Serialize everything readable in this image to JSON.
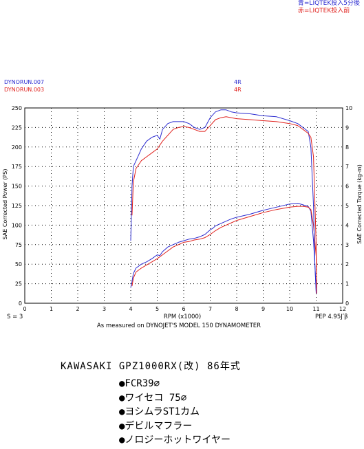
{
  "legend": {
    "blue_label": "青=LIQTEK投入5分後",
    "red_label": "赤=LIQTEK投入前"
  },
  "runs": [
    {
      "file": "DYNORUN.007",
      "gear": "4R",
      "color": "#2a2ad0"
    },
    {
      "file": "DYNORUN.003",
      "gear": "4R",
      "color": "#e0201c"
    }
  ],
  "footer": {
    "smoothing": "S = 3",
    "pep": "PEP 4.95Jʹβ",
    "measured": "As measured on DYNOJET'S MODEL 150 DYNAMOMETER"
  },
  "bike": {
    "model": "KAWASAKI  GPZ1000RX(改)  86年式",
    "mods": [
      "●FCR39∅",
      "●ワイセコ 75∅",
      "●ヨシムラST1カム",
      "●デビルマフラー",
      "●ノロジーホットワイヤー"
    ]
  },
  "chart_data": {
    "type": "line",
    "xlabel": "RPM (x1000)",
    "ylabel": "SAE Corrected Power (PS)",
    "y2label": "SAE Corrected Torque (kg-m)",
    "xlim": [
      0,
      12
    ],
    "ylim": [
      0,
      250
    ],
    "y2lim": [
      0,
      10
    ],
    "xticks": [
      0,
      1,
      2,
      3,
      4,
      5,
      6,
      7,
      8,
      9,
      10,
      11,
      12
    ],
    "yticks": [
      0,
      25,
      50,
      75,
      100,
      125,
      150,
      175,
      200,
      225,
      250
    ],
    "y2ticks": [
      0,
      1,
      2,
      3,
      4,
      5,
      6,
      7,
      8,
      9,
      10
    ],
    "grid": "dotted",
    "series": [
      {
        "run": "DYNORUN.007",
        "quantity": "power",
        "axis": "left",
        "color": "#2a2ad0",
        "x": [
          4.0,
          4.05,
          4.1,
          4.2,
          4.4,
          4.6,
          4.8,
          5.0,
          5.1,
          5.2,
          5.4,
          5.6,
          5.8,
          6.0,
          6.2,
          6.4,
          6.6,
          6.8,
          7.0,
          7.1,
          7.2,
          7.4,
          7.6,
          7.8,
          8.0,
          8.5,
          9.0,
          9.5,
          10.0,
          10.3,
          10.5,
          10.7,
          10.8,
          10.9,
          10.95,
          11.0
        ],
        "y": [
          20,
          28,
          38,
          45,
          50,
          53,
          57,
          62,
          61,
          66,
          72,
          75,
          78,
          80,
          82,
          83,
          85,
          88,
          94,
          96,
          99,
          102,
          105,
          108,
          110,
          114,
          119,
          123,
          127,
          128,
          126,
          124,
          118,
          80,
          50,
          15
        ]
      },
      {
        "run": "DYNORUN.003",
        "quantity": "power",
        "axis": "left",
        "color": "#e0201c",
        "x": [
          4.05,
          4.1,
          4.2,
          4.4,
          4.6,
          4.8,
          5.0,
          5.2,
          5.4,
          5.6,
          5.8,
          6.0,
          6.2,
          6.4,
          6.6,
          6.8,
          7.0,
          7.2,
          7.4,
          7.6,
          7.8,
          8.0,
          8.5,
          9.0,
          9.5,
          10.0,
          10.3,
          10.5,
          10.7,
          10.8,
          10.9,
          11.0,
          11.02
        ],
        "y": [
          22,
          32,
          40,
          45,
          49,
          53,
          57,
          62,
          67,
          72,
          75,
          78,
          79,
          81,
          82,
          84,
          88,
          93,
          97,
          100,
          103,
          106,
          111,
          116,
          120,
          123,
          124,
          124,
          123,
          120,
          100,
          60,
          20
        ]
      },
      {
        "run": "DYNORUN.007",
        "quantity": "torque",
        "axis": "right",
        "color": "#2a2ad0",
        "x": [
          4.0,
          4.05,
          4.1,
          4.2,
          4.3,
          4.4,
          4.6,
          4.8,
          5.0,
          5.1,
          5.2,
          5.4,
          5.6,
          5.8,
          6.0,
          6.2,
          6.4,
          6.6,
          6.8,
          7.0,
          7.2,
          7.4,
          7.6,
          7.8,
          8.0,
          8.5,
          9.0,
          9.5,
          10.0,
          10.3,
          10.5,
          10.7,
          10.8,
          10.9,
          10.95,
          11.0
        ],
        "y": [
          3.2,
          6.0,
          7.0,
          7.3,
          7.6,
          7.9,
          8.3,
          8.5,
          8.6,
          8.4,
          8.9,
          9.2,
          9.3,
          9.3,
          9.3,
          9.2,
          9.0,
          8.9,
          9.0,
          9.5,
          9.8,
          9.9,
          9.9,
          9.8,
          9.75,
          9.7,
          9.6,
          9.55,
          9.35,
          9.2,
          9.0,
          8.8,
          8.0,
          5.0,
          2.0,
          0.5
        ]
      },
      {
        "run": "DYNORUN.003",
        "quantity": "torque",
        "axis": "right",
        "color": "#e0201c",
        "x": [
          4.05,
          4.1,
          4.2,
          4.3,
          4.4,
          4.6,
          4.8,
          5.0,
          5.2,
          5.4,
          5.6,
          5.8,
          6.0,
          6.2,
          6.4,
          6.6,
          6.8,
          7.0,
          7.2,
          7.4,
          7.6,
          7.8,
          8.0,
          8.5,
          9.0,
          9.5,
          10.0,
          10.3,
          10.5,
          10.7,
          10.8,
          10.9,
          11.0,
          11.02
        ],
        "y": [
          4.5,
          6.2,
          6.9,
          7.1,
          7.3,
          7.5,
          7.7,
          7.9,
          8.3,
          8.6,
          8.9,
          9.0,
          9.05,
          9.0,
          8.9,
          8.8,
          8.8,
          9.1,
          9.4,
          9.5,
          9.55,
          9.5,
          9.45,
          9.4,
          9.35,
          9.3,
          9.2,
          9.1,
          8.9,
          8.7,
          8.5,
          7.5,
          3.0,
          0.5
        ]
      }
    ]
  }
}
